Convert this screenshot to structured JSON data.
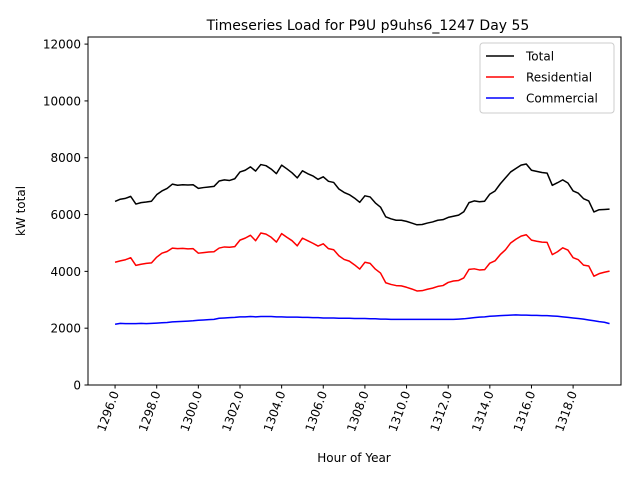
{
  "chart_data": {
    "type": "line",
    "title": "Timeseries Load for P9U p9uhs6_1247  Day 55",
    "xlabel": "Hour of Year",
    "ylabel": "kW total",
    "xlim": [
      1294.7,
      1320.3
    ],
    "ylim": [
      0,
      12250
    ],
    "xticks": [
      1296,
      1298,
      1300,
      1302,
      1304,
      1306,
      1308,
      1310,
      1312,
      1314,
      1316,
      1318
    ],
    "xtick_labels": [
      "1296.0",
      "1298.0",
      "1300.0",
      "1302.0",
      "1304.0",
      "1306.0",
      "1308.0",
      "1310.0",
      "1312.0",
      "1314.0",
      "1316.0",
      "1318.0"
    ],
    "yticks": [
      0,
      2000,
      4000,
      6000,
      8000,
      10000,
      12000
    ],
    "ytick_labels": [
      "0",
      "2000",
      "4000",
      "6000",
      "8000",
      "10000",
      "12000"
    ],
    "legend_position": "top-right",
    "x": [
      1296.0,
      1296.25,
      1296.5,
      1296.75,
      1297.0,
      1297.25,
      1297.5,
      1297.75,
      1298.0,
      1298.25,
      1298.5,
      1298.75,
      1299.0,
      1299.25,
      1299.5,
      1299.75,
      1300.0,
      1300.25,
      1300.5,
      1300.75,
      1301.0,
      1301.25,
      1301.5,
      1301.75,
      1302.0,
      1302.25,
      1302.5,
      1302.75,
      1303.0,
      1303.25,
      1303.5,
      1303.75,
      1304.0,
      1304.25,
      1304.5,
      1304.75,
      1305.0,
      1305.25,
      1305.5,
      1305.75,
      1306.0,
      1306.25,
      1306.5,
      1306.75,
      1307.0,
      1307.25,
      1307.5,
      1307.75,
      1308.0,
      1308.25,
      1308.5,
      1308.75,
      1309.0,
      1309.25,
      1309.5,
      1309.75,
      1310.0,
      1310.25,
      1310.5,
      1310.75,
      1311.0,
      1311.25,
      1311.5,
      1311.75,
      1312.0,
      1312.25,
      1312.5,
      1312.75,
      1313.0,
      1313.25,
      1313.5,
      1313.75,
      1314.0,
      1314.25,
      1314.5,
      1314.75,
      1315.0,
      1315.25,
      1315.5,
      1315.75,
      1316.0,
      1316.25,
      1316.5,
      1316.75,
      1317.0,
      1317.25,
      1317.5,
      1317.75,
      1318.0,
      1318.25,
      1318.5,
      1318.75,
      1319.0,
      1319.25,
      1319.5,
      1319.75
    ],
    "series": [
      {
        "name": "Total",
        "color": "#000000",
        "values": [
          6460,
          6540,
          6570,
          6640,
          6370,
          6420,
          6440,
          6470,
          6700,
          6830,
          6920,
          7070,
          7030,
          7050,
          7040,
          7050,
          6920,
          6950,
          6970,
          6990,
          7180,
          7220,
          7200,
          7260,
          7500,
          7560,
          7680,
          7530,
          7760,
          7720,
          7600,
          7440,
          7740,
          7610,
          7470,
          7290,
          7540,
          7440,
          7360,
          7240,
          7330,
          7170,
          7130,
          6900,
          6780,
          6700,
          6580,
          6430,
          6660,
          6620,
          6410,
          6260,
          5920,
          5850,
          5800,
          5800,
          5760,
          5700,
          5640,
          5650,
          5700,
          5740,
          5800,
          5820,
          5900,
          5940,
          5980,
          6100,
          6420,
          6480,
          6450,
          6470,
          6720,
          6830,
          7080,
          7290,
          7500,
          7620,
          7740,
          7780,
          7560,
          7520,
          7480,
          7460,
          7030,
          7120,
          7220,
          7110,
          6830,
          6750,
          6560,
          6480,
          6090,
          6170,
          6180,
          6190
        ]
      },
      {
        "name": "Residential",
        "color": "#ff0000",
        "values": [
          4320,
          4370,
          4410,
          4480,
          4210,
          4250,
          4280,
          4300,
          4500,
          4640,
          4700,
          4820,
          4800,
          4810,
          4790,
          4800,
          4640,
          4660,
          4680,
          4690,
          4820,
          4860,
          4850,
          4870,
          5100,
          5170,
          5270,
          5080,
          5350,
          5310,
          5200,
          5030,
          5330,
          5200,
          5080,
          4900,
          5170,
          5080,
          4990,
          4890,
          4970,
          4800,
          4760,
          4550,
          4420,
          4360,
          4230,
          4080,
          4320,
          4280,
          4080,
          3940,
          3600,
          3540,
          3500,
          3490,
          3440,
          3380,
          3310,
          3320,
          3370,
          3410,
          3470,
          3500,
          3610,
          3660,
          3680,
          3770,
          4070,
          4090,
          4050,
          4060,
          4290,
          4370,
          4590,
          4760,
          5000,
          5130,
          5240,
          5290,
          5100,
          5060,
          5030,
          5020,
          4590,
          4690,
          4830,
          4750,
          4480,
          4410,
          4220,
          4190,
          3830,
          3920,
          3970,
          4010
        ]
      },
      {
        "name": "Commercial",
        "color": "#0000ff",
        "values": [
          2140,
          2170,
          2160,
          2160,
          2160,
          2170,
          2160,
          2170,
          2180,
          2190,
          2200,
          2220,
          2230,
          2240,
          2250,
          2260,
          2280,
          2290,
          2300,
          2310,
          2350,
          2360,
          2370,
          2380,
          2400,
          2400,
          2410,
          2400,
          2410,
          2410,
          2410,
          2400,
          2400,
          2390,
          2390,
          2390,
          2380,
          2380,
          2370,
          2370,
          2360,
          2360,
          2360,
          2350,
          2350,
          2350,
          2340,
          2340,
          2340,
          2330,
          2330,
          2320,
          2320,
          2310,
          2310,
          2310,
          2310,
          2310,
          2310,
          2310,
          2310,
          2310,
          2310,
          2310,
          2310,
          2310,
          2320,
          2330,
          2350,
          2370,
          2390,
          2400,
          2420,
          2430,
          2440,
          2450,
          2460,
          2470,
          2460,
          2460,
          2450,
          2450,
          2440,
          2440,
          2430,
          2420,
          2400,
          2380,
          2360,
          2340,
          2320,
          2290,
          2260,
          2230,
          2210,
          2160
        ]
      }
    ]
  }
}
